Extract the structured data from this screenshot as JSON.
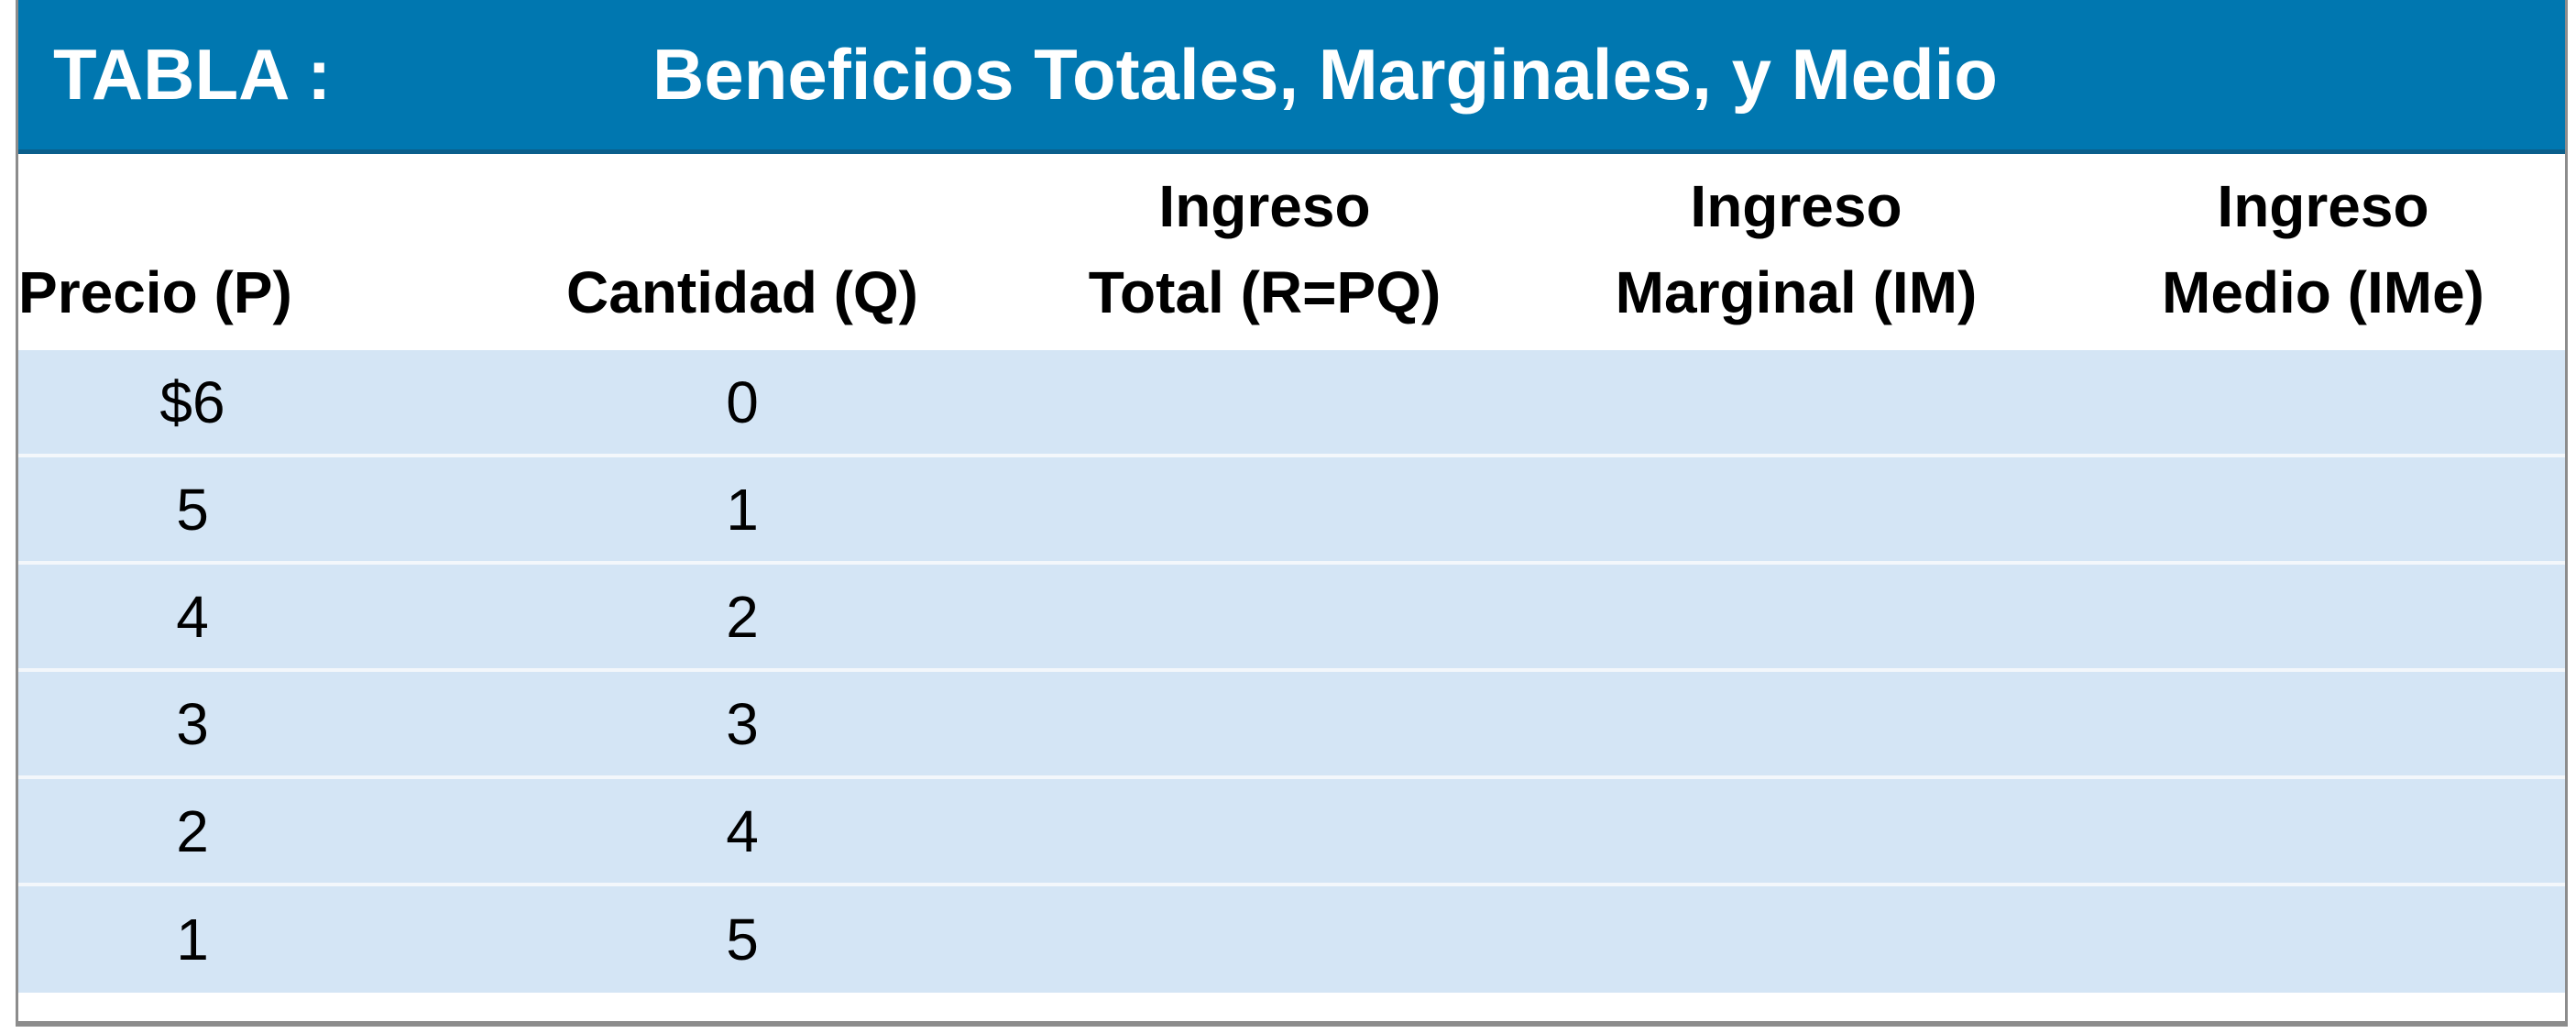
{
  "title": {
    "label": "TABLA :",
    "text": "Beneficios Totales, Marginales, y Medio"
  },
  "columns": [
    {
      "line1": "",
      "line2": "Precio (P)"
    },
    {
      "line1": "",
      "line2": "Cantidad (Q)"
    },
    {
      "line1": "Ingreso",
      "line2": "Total (R=PQ)"
    },
    {
      "line1": "Ingreso",
      "line2": "Marginal (IM)"
    },
    {
      "line1": "Ingreso",
      "line2": "Medio (IMe)"
    }
  ],
  "rows": [
    {
      "precio": "$6",
      "cantidad": "0",
      "ingreso_total": "",
      "ingreso_marginal": "",
      "ingreso_medio": ""
    },
    {
      "precio": "5",
      "cantidad": "1",
      "ingreso_total": "",
      "ingreso_marginal": "",
      "ingreso_medio": ""
    },
    {
      "precio": "4",
      "cantidad": "2",
      "ingreso_total": "",
      "ingreso_marginal": "",
      "ingreso_medio": ""
    },
    {
      "precio": "3",
      "cantidad": "3",
      "ingreso_total": "",
      "ingreso_marginal": "",
      "ingreso_medio": ""
    },
    {
      "precio": "2",
      "cantidad": "4",
      "ingreso_total": "",
      "ingreso_marginal": "",
      "ingreso_medio": ""
    },
    {
      "precio": "1",
      "cantidad": "5",
      "ingreso_total": "",
      "ingreso_marginal": "",
      "ingreso_medio": ""
    }
  ],
  "colors": {
    "title_bar": "#0077b0",
    "row_fill": "#d4e5f5",
    "row_separator": "#f3f7fb",
    "frame_border": "#8c8c8c"
  }
}
